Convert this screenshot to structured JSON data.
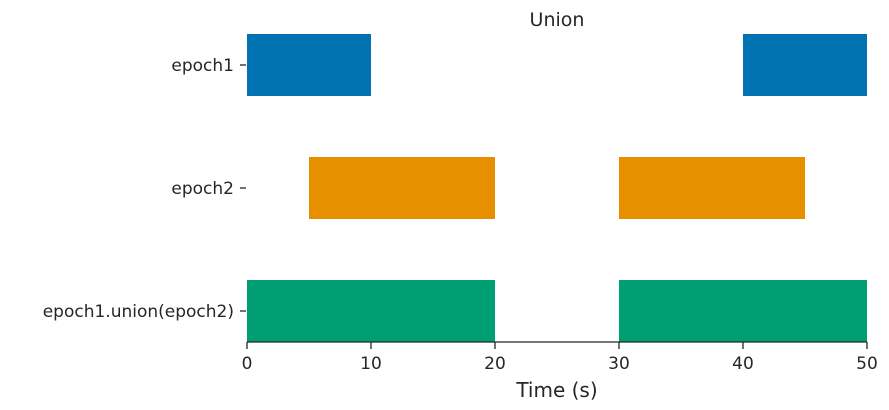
{
  "chart_data": {
    "type": "bar",
    "orientation": "horizontal-intervals",
    "title": "Union",
    "xlabel": "Time (s)",
    "ylabel": "",
    "xlim": [
      0,
      50
    ],
    "xticks": [
      0,
      10,
      20,
      30,
      40,
      50
    ],
    "grid": false,
    "legend": "none",
    "categories": [
      "epoch1",
      "epoch2",
      "epoch1.union(epoch2)"
    ],
    "series": [
      {
        "category": "epoch1",
        "color": "#0072b2",
        "intervals": [
          [
            0,
            10
          ],
          [
            40,
            50
          ]
        ]
      },
      {
        "category": "epoch2",
        "color": "#e69000",
        "intervals": [
          [
            5,
            20
          ],
          [
            30,
            45
          ]
        ]
      },
      {
        "category": "epoch1.union(epoch2)",
        "color": "#009e73",
        "intervals": [
          [
            0,
            20
          ],
          [
            30,
            50
          ]
        ]
      }
    ]
  }
}
